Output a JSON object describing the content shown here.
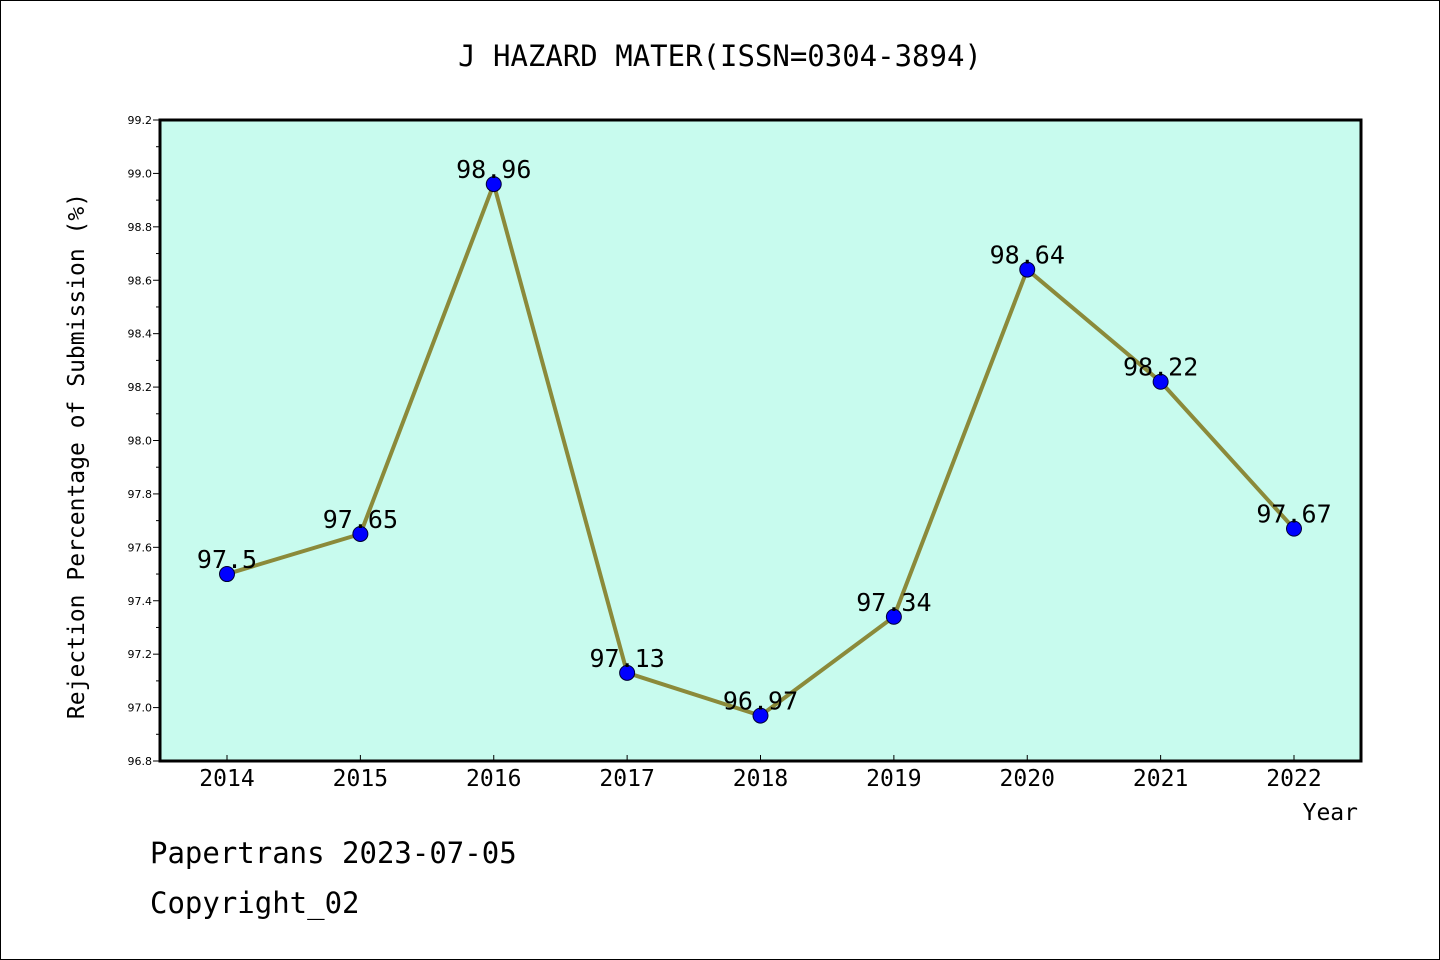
{
  "chart_data": {
    "type": "line",
    "title": "J HAZARD MATER(ISSN=0304-3894)",
    "xlabel": "Year",
    "ylabel": "Rejection Percentage of Submission (%)",
    "categories": [
      "2014",
      "2015",
      "2016",
      "2017",
      "2018",
      "2019",
      "2020",
      "2021",
      "2022"
    ],
    "values": [
      97.5,
      97.65,
      98.96,
      97.13,
      96.97,
      97.34,
      98.64,
      98.22,
      97.67
    ],
    "data_labels": [
      "97.5",
      "97.65",
      "98.96",
      "97.13",
      "96.97",
      "97.34",
      "98.64",
      "98.22",
      "97.67"
    ],
    "ylim": [
      96.8,
      99.2
    ],
    "yticks": [
      "96.8",
      "97.0",
      "97.2",
      "97.4",
      "97.6",
      "97.8",
      "98.0",
      "98.2",
      "98.4",
      "98.6",
      "98.8",
      "99.0",
      "99.2"
    ],
    "grid": false,
    "colors": {
      "plot_background": "#c8fbee",
      "line": "#8b8a3a",
      "marker": "#0000ff"
    }
  },
  "footer": {
    "line1": "Papertrans 2023-07-05",
    "line2": "Copyright_02"
  }
}
